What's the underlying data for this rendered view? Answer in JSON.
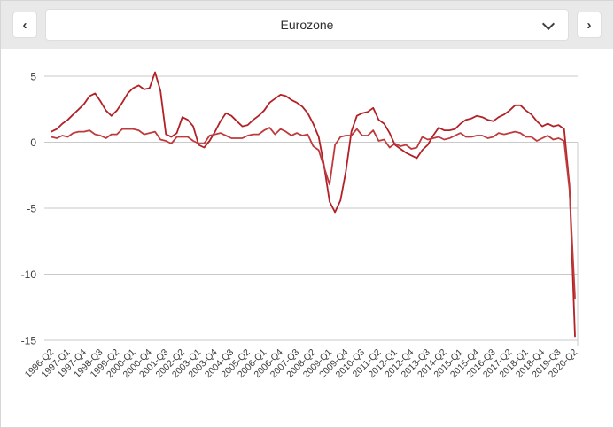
{
  "toolbar": {
    "dropdown_value": "Eurozone"
  },
  "icons": {
    "chevron_left": "‹",
    "chevron_right": "›",
    "dropdown_caret": "chevron-down"
  },
  "colors": {
    "topbar_bg": "#e9e9e9",
    "button_bg": "#ffffff",
    "grid": "#c9c9c9",
    "axis_text": "#3c3c3c",
    "series_annual": "#b22126",
    "series_quarterly": "#bf3a3c"
  },
  "chart_data": {
    "type": "line",
    "title": "",
    "xlabel": "",
    "ylabel": "",
    "legend": "none",
    "grid": true,
    "ylim": [
      -15,
      5
    ],
    "yticks": [
      5,
      0,
      -5,
      -10,
      -15
    ],
    "tick_every": 3,
    "categories": [
      "1996-Q2",
      "1996-Q3",
      "1996-Q4",
      "1997-Q1",
      "1997-Q2",
      "1997-Q3",
      "1997-Q4",
      "1998-Q1",
      "1998-Q2",
      "1998-Q3",
      "1998-Q4",
      "1999-Q1",
      "1999-Q2",
      "1999-Q3",
      "1999-Q4",
      "2000-Q1",
      "2000-Q2",
      "2000-Q3",
      "2000-Q4",
      "2001-Q1",
      "2001-Q2",
      "2001-Q3",
      "2001-Q4",
      "2002-Q1",
      "2002-Q2",
      "2002-Q3",
      "2002-Q4",
      "2003-Q1",
      "2003-Q2",
      "2003-Q3",
      "2003-Q4",
      "2004-Q1",
      "2004-Q2",
      "2004-Q3",
      "2004-Q4",
      "2005-Q1",
      "2005-Q2",
      "2005-Q3",
      "2005-Q4",
      "2006-Q1",
      "2006-Q2",
      "2006-Q3",
      "2006-Q4",
      "2007-Q1",
      "2007-Q2",
      "2007-Q3",
      "2007-Q4",
      "2008-Q1",
      "2008-Q2",
      "2008-Q3",
      "2008-Q4",
      "2009-Q1",
      "2009-Q2",
      "2009-Q3",
      "2009-Q4",
      "2010-Q1",
      "2010-Q2",
      "2010-Q3",
      "2010-Q4",
      "2011-Q1",
      "2011-Q2",
      "2011-Q3",
      "2011-Q4",
      "2012-Q1",
      "2012-Q2",
      "2012-Q3",
      "2012-Q4",
      "2013-Q1",
      "2013-Q2",
      "2013-Q3",
      "2013-Q4",
      "2014-Q1",
      "2014-Q2",
      "2014-Q3",
      "2014-Q4",
      "2015-Q1",
      "2015-Q2",
      "2015-Q3",
      "2015-Q4",
      "2016-Q1",
      "2016-Q2",
      "2016-Q3",
      "2016-Q4",
      "2017-Q1",
      "2017-Q2",
      "2017-Q3",
      "2017-Q4",
      "2018-Q1",
      "2018-Q2",
      "2018-Q3",
      "2018-Q4",
      "2019-Q1",
      "2019-Q2",
      "2019-Q3",
      "2019-Q4",
      "2020-Q1",
      "2020-Q2"
    ],
    "series": [
      {
        "name": "annual-growth",
        "color": "#b22126",
        "values": [
          0.8,
          1.0,
          1.4,
          1.7,
          2.1,
          2.5,
          2.9,
          3.5,
          3.7,
          3.1,
          2.4,
          2.0,
          2.4,
          3.0,
          3.7,
          4.1,
          4.3,
          4.0,
          4.1,
          5.3,
          3.9,
          0.6,
          0.4,
          0.7,
          1.9,
          1.7,
          1.2,
          -0.2,
          -0.4,
          0.1,
          0.8,
          1.6,
          2.2,
          2.0,
          1.6,
          1.2,
          1.3,
          1.7,
          2.0,
          2.4,
          3.0,
          3.3,
          3.6,
          3.5,
          3.2,
          3.0,
          2.7,
          2.2,
          1.4,
          0.4,
          -1.8,
          -4.5,
          -5.3,
          -4.4,
          -2.2,
          0.8,
          2.0,
          2.2,
          2.3,
          2.6,
          1.7,
          1.4,
          0.7,
          -0.2,
          -0.5,
          -0.8,
          -1.0,
          -1.2,
          -0.6,
          -0.2,
          0.5,
          1.1,
          0.9,
          0.9,
          1.0,
          1.4,
          1.7,
          1.8,
          2.0,
          1.9,
          1.7,
          1.6,
          1.9,
          2.1,
          2.4,
          2.8,
          2.8,
          2.4,
          2.1,
          1.6,
          1.2,
          1.4,
          1.2,
          1.3,
          1.0,
          -3.3,
          -14.7
        ]
      },
      {
        "name": "quarterly-growth",
        "color": "#bf3a3c",
        "values": [
          0.4,
          0.3,
          0.5,
          0.4,
          0.7,
          0.8,
          0.8,
          0.9,
          0.6,
          0.5,
          0.3,
          0.6,
          0.6,
          1.0,
          1.0,
          1.0,
          0.9,
          0.6,
          0.7,
          0.8,
          0.2,
          0.1,
          -0.1,
          0.4,
          0.4,
          0.4,
          0.1,
          -0.1,
          -0.1,
          0.5,
          0.6,
          0.7,
          0.5,
          0.3,
          0.3,
          0.3,
          0.5,
          0.6,
          0.6,
          0.9,
          1.1,
          0.6,
          1.0,
          0.8,
          0.5,
          0.7,
          0.5,
          0.6,
          -0.3,
          -0.6,
          -1.9,
          -3.2,
          -0.2,
          0.4,
          0.5,
          0.5,
          1.0,
          0.5,
          0.5,
          0.9,
          0.1,
          0.2,
          -0.4,
          -0.1,
          -0.3,
          -0.2,
          -0.5,
          -0.4,
          0.4,
          0.2,
          0.3,
          0.4,
          0.2,
          0.3,
          0.5,
          0.7,
          0.4,
          0.4,
          0.5,
          0.5,
          0.3,
          0.4,
          0.7,
          0.6,
          0.7,
          0.8,
          0.7,
          0.4,
          0.4,
          0.1,
          0.3,
          0.5,
          0.2,
          0.3,
          0.1,
          -3.6,
          -11.8
        ]
      }
    ]
  }
}
